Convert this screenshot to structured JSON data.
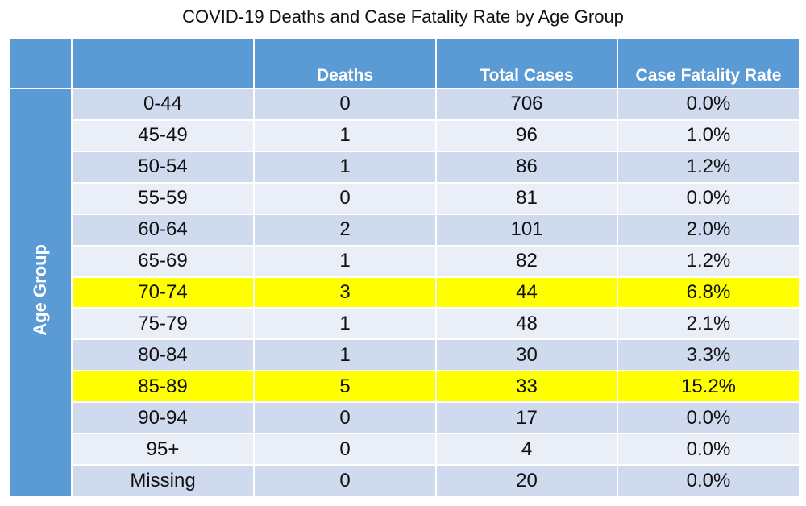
{
  "title": "COVID-19 Deaths and Case Fatality Rate by Age Group",
  "colors": {
    "header": "#5b9bd5",
    "row_dark": "#cfdaef",
    "row_light": "#e9eef7",
    "highlight": "#ffff00"
  },
  "chart_data": {
    "type": "table",
    "title": "COVID-19 Deaths and Case Fatality Rate by Age Group",
    "row_header_label": "Age Group",
    "columns": [
      "",
      "Deaths",
      "Total Cases",
      "Case Fatality Rate"
    ],
    "rows": [
      {
        "age": "0-44",
        "deaths": "0",
        "cases": "706",
        "cfr": "0.0%",
        "highlight": false
      },
      {
        "age": "45-49",
        "deaths": "1",
        "cases": "96",
        "cfr": "1.0%",
        "highlight": false
      },
      {
        "age": "50-54",
        "deaths": "1",
        "cases": "86",
        "cfr": "1.2%",
        "highlight": false
      },
      {
        "age": "55-59",
        "deaths": "0",
        "cases": "81",
        "cfr": "0.0%",
        "highlight": false
      },
      {
        "age": "60-64",
        "deaths": "2",
        "cases": "101",
        "cfr": "2.0%",
        "highlight": false
      },
      {
        "age": "65-69",
        "deaths": "1",
        "cases": "82",
        "cfr": "1.2%",
        "highlight": false
      },
      {
        "age": "70-74",
        "deaths": "3",
        "cases": "44",
        "cfr": "6.8%",
        "highlight": true
      },
      {
        "age": "75-79",
        "deaths": "1",
        "cases": "48",
        "cfr": "2.1%",
        "highlight": false
      },
      {
        "age": "80-84",
        "deaths": "1",
        "cases": "30",
        "cfr": "3.3%",
        "highlight": false
      },
      {
        "age": "85-89",
        "deaths": "5",
        "cases": "33",
        "cfr": "15.2%",
        "highlight": true
      },
      {
        "age": "90-94",
        "deaths": "0",
        "cases": "17",
        "cfr": "0.0%",
        "highlight": false
      },
      {
        "age": "95+",
        "deaths": "0",
        "cases": "4",
        "cfr": "0.0%",
        "highlight": false
      },
      {
        "age": "Missing",
        "deaths": "0",
        "cases": "20",
        "cfr": "0.0%",
        "highlight": false
      }
    ]
  }
}
